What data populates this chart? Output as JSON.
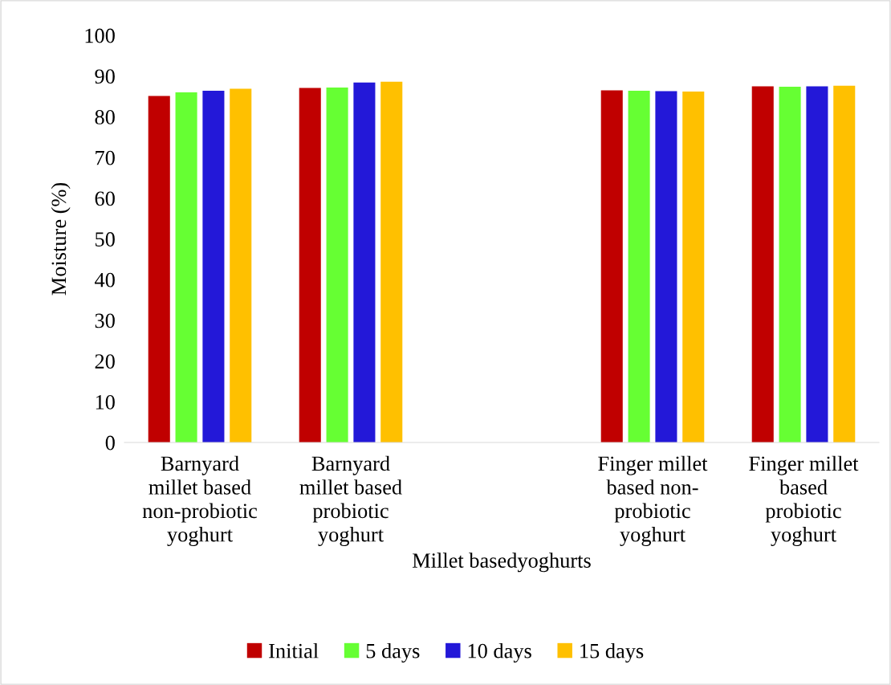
{
  "chart_data": {
    "type": "bar",
    "xlabel": "Millet basedyoghurts",
    "ylabel": "Moisture (%)",
    "categories": [
      "Barnyard\nmillet based\nnon-probiotic\nyoghurt",
      "Barnyard\nmillet based\nprobiotic\nyoghurt",
      null,
      "Finger millet\nbased non-\nprobiotic\nyoghurt",
      "Finger millet\nbased\nprobiotic\nyoghurt"
    ],
    "series": [
      {
        "name": "Initial",
        "color": "#c00000",
        "values": [
          85.1,
          87.1,
          null,
          86.5,
          87.5
        ]
      },
      {
        "name": "5 days",
        "color": "#66ff33",
        "values": [
          86.0,
          87.2,
          null,
          86.4,
          87.4
        ]
      },
      {
        "name": "10 days",
        "color": "#2318d8",
        "values": [
          86.4,
          88.4,
          null,
          86.3,
          87.5
        ]
      },
      {
        "name": "15 days",
        "color": "#ffc000",
        "values": [
          86.9,
          88.6,
          null,
          86.2,
          87.6
        ]
      }
    ],
    "ylim": [
      0,
      100
    ],
    "yticks": [
      0,
      10,
      20,
      30,
      40,
      50,
      60,
      70,
      80,
      90,
      100
    ],
    "grid": false,
    "legend": "bottom"
  }
}
